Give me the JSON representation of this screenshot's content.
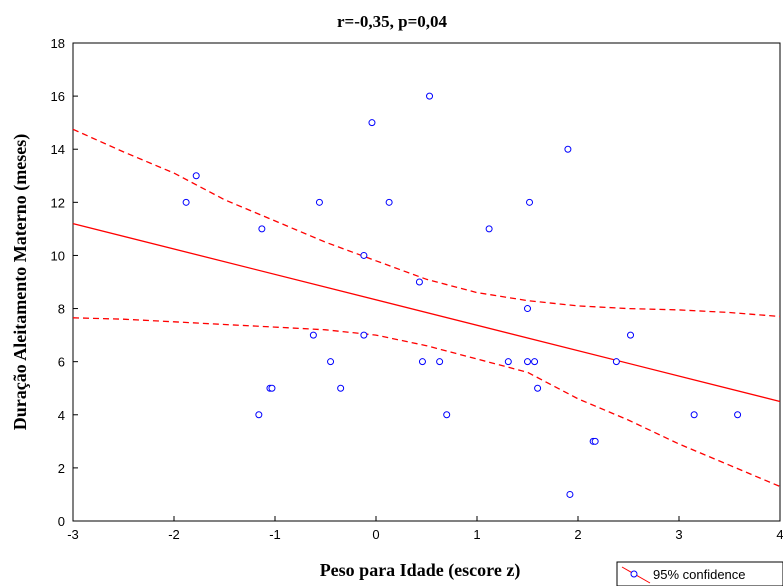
{
  "chart_data": {
    "type": "scatter",
    "title": "r=-0,35, p=0,04",
    "xlabel": "Peso para Idade (escore z)",
    "ylabel": "Duração Aleitamento Materno (meses)",
    "xlim": [
      -3,
      4
    ],
    "ylim": [
      0,
      18
    ],
    "xticks": [
      "-3",
      "-2",
      "-1",
      "0",
      "1",
      "2",
      "3",
      "4"
    ],
    "yticks": [
      "0",
      "2",
      "4",
      "6",
      "8",
      "10",
      "12",
      "14",
      "16",
      "18"
    ],
    "grid": false,
    "legend": {
      "position": "bottom-right",
      "label": "95% confidence"
    },
    "colors": {
      "points": "#0000ff",
      "fit": "#ff0000",
      "ci": "#ff0000"
    },
    "points": [
      [
        -1.88,
        12
      ],
      [
        -1.78,
        13
      ],
      [
        -1.13,
        11
      ],
      [
        -1.16,
        4
      ],
      [
        -1.05,
        5
      ],
      [
        -1.03,
        5
      ],
      [
        -0.62,
        7
      ],
      [
        -0.56,
        12
      ],
      [
        -0.45,
        6
      ],
      [
        -0.35,
        5
      ],
      [
        -0.12,
        10
      ],
      [
        -0.12,
        7
      ],
      [
        -0.04,
        15
      ],
      [
        0.13,
        12
      ],
      [
        0.43,
        9
      ],
      [
        0.46,
        6
      ],
      [
        0.53,
        16
      ],
      [
        0.63,
        6
      ],
      [
        0.7,
        4
      ],
      [
        1.12,
        11
      ],
      [
        1.31,
        6
      ],
      [
        1.5,
        6
      ],
      [
        1.5,
        8
      ],
      [
        1.52,
        12
      ],
      [
        1.57,
        6
      ],
      [
        1.6,
        5
      ],
      [
        1.9,
        14
      ],
      [
        1.92,
        1
      ],
      [
        2.15,
        3
      ],
      [
        2.17,
        3
      ],
      [
        2.38,
        6
      ],
      [
        2.52,
        7
      ],
      [
        3.15,
        4
      ],
      [
        3.58,
        4
      ]
    ],
    "fit_line": {
      "x": [
        -3,
        4
      ],
      "y": [
        11.2,
        4.5
      ]
    },
    "ci_upper": {
      "x": [
        -3,
        -2.5,
        -2,
        -1.5,
        -1,
        -0.5,
        0,
        0.5,
        1,
        1.5,
        2,
        2.5,
        3,
        3.5,
        4
      ],
      "y": [
        14.75,
        13.9,
        13.1,
        12.1,
        11.3,
        10.5,
        9.8,
        9.1,
        8.6,
        8.3,
        8.1,
        8.0,
        7.95,
        7.85,
        7.7
      ]
    },
    "ci_lower": {
      "x": [
        -3,
        -2.5,
        -2,
        -1.5,
        -1,
        -0.5,
        0,
        0.5,
        1,
        1.5,
        2,
        2.5,
        3,
        3.5,
        4
      ],
      "y": [
        7.65,
        7.6,
        7.5,
        7.4,
        7.3,
        7.2,
        7.0,
        6.6,
        6.1,
        5.6,
        4.6,
        3.8,
        2.9,
        2.1,
        1.3
      ]
    }
  }
}
